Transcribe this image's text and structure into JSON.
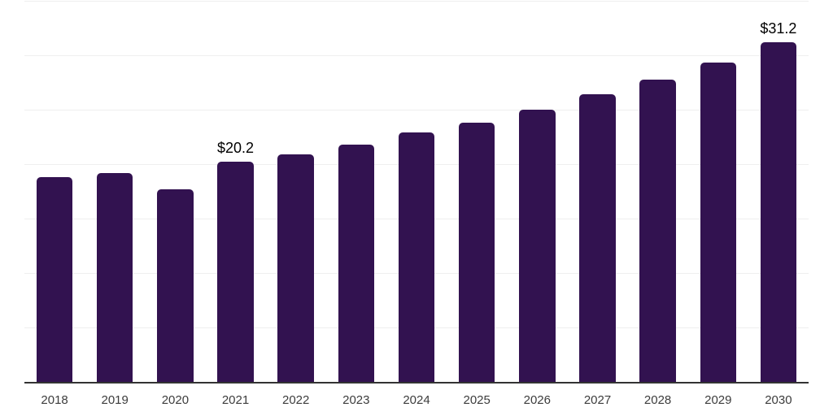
{
  "chart_data": {
    "type": "bar",
    "title": "",
    "xlabel": "",
    "ylabel": "",
    "categories": [
      "2018",
      "2019",
      "2020",
      "2021",
      "2022",
      "2023",
      "2024",
      "2025",
      "2026",
      "2027",
      "2028",
      "2029",
      "2030"
    ],
    "values": [
      18.8,
      19.2,
      17.7,
      20.2,
      20.9,
      21.8,
      22.9,
      23.8,
      25.0,
      26.4,
      27.8,
      29.3,
      31.2
    ],
    "value_labels": {
      "2021": "$20.2",
      "2030": "$31.2"
    },
    "ylim": [
      0,
      35
    ],
    "gridline_step": 5,
    "grid": "horizontal-only",
    "legend": "none",
    "y_axis_ticks_visible": false,
    "colors": {
      "bar": "#321250",
      "gridline": "#efefef",
      "axis_line": "#333333",
      "tick_label": "#3c3c3c",
      "value_label": "#000000",
      "background": "#ffffff"
    }
  }
}
